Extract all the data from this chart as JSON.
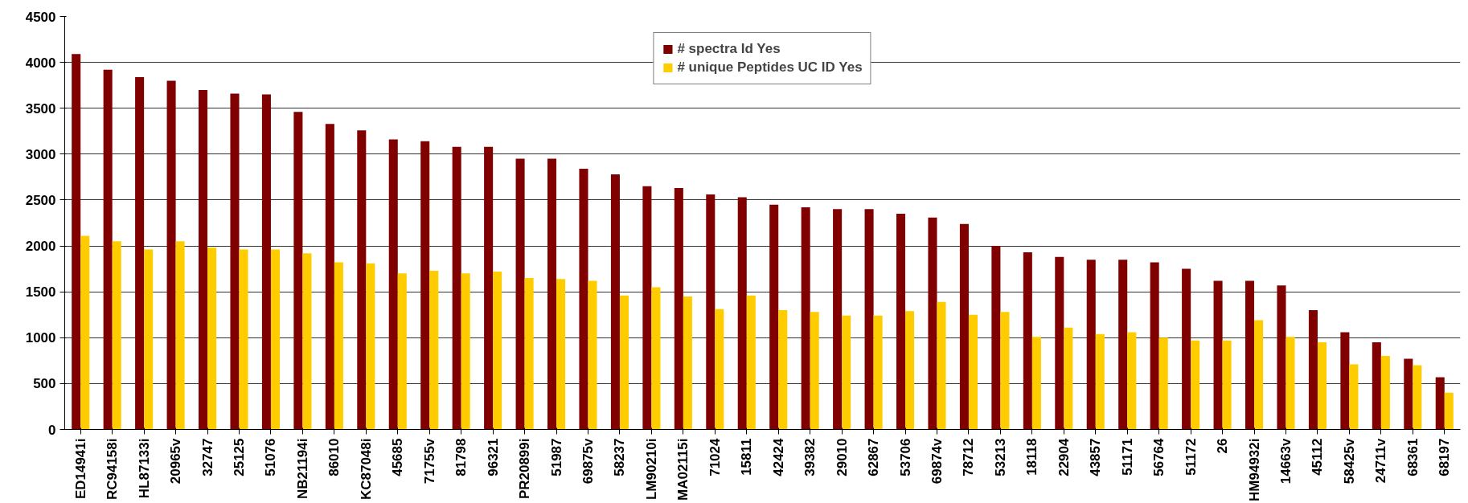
{
  "chart_data": {
    "type": "bar",
    "categories": [
      "ED14941i",
      "RC94158i",
      "HL87133i",
      "20965v",
      "32747",
      "25125",
      "51076",
      "NB21194i",
      "86010",
      "KC87048i",
      "45685",
      "71755v",
      "81798",
      "96321",
      "PR20899i",
      "51987",
      "69875v",
      "58237",
      "LM90210i",
      "MA02115i",
      "71024",
      "15811",
      "42424",
      "39382",
      "29010",
      "62867",
      "53706",
      "69874v",
      "78712",
      "53213",
      "18118",
      "22904",
      "43857",
      "51171",
      "56764",
      "51172",
      "26",
      "HM94932i",
      "14663v",
      "45112",
      "58425v",
      "24711v",
      "68361",
      "68197"
    ],
    "series": [
      {
        "name": "# spectra Id Yes",
        "color": "#800000",
        "values": [
          4090,
          3920,
          3840,
          3800,
          3700,
          3660,
          3650,
          3460,
          3330,
          3260,
          3160,
          3140,
          3080,
          3080,
          2950,
          2950,
          2840,
          2780,
          2650,
          2630,
          2560,
          2530,
          2450,
          2420,
          2400,
          2400,
          2350,
          2310,
          2240,
          2000,
          1930,
          1880,
          1850,
          1850,
          1820,
          1750,
          1620,
          1620,
          1570,
          1300,
          1060,
          950,
          770,
          570
        ]
      },
      {
        "name": "# unique Peptides UC ID Yes",
        "color": "#ffcc00",
        "values": [
          2110,
          2050,
          1960,
          2050,
          1980,
          1960,
          1960,
          1920,
          1820,
          1810,
          1700,
          1730,
          1700,
          1720,
          1650,
          1640,
          1620,
          1460,
          1550,
          1450,
          1310,
          1460,
          1300,
          1280,
          1240,
          1240,
          1290,
          1390,
          1250,
          1280,
          1010,
          1110,
          1040,
          1060,
          1000,
          970,
          970,
          1190,
          1010,
          950,
          710,
          800,
          700,
          400
        ]
      }
    ],
    "ylim": [
      0,
      4500
    ],
    "yticks": [
      0,
      500,
      1000,
      1500,
      2000,
      2500,
      3000,
      3500,
      4000,
      4500
    ],
    "grid": "y",
    "legend": "top right"
  }
}
